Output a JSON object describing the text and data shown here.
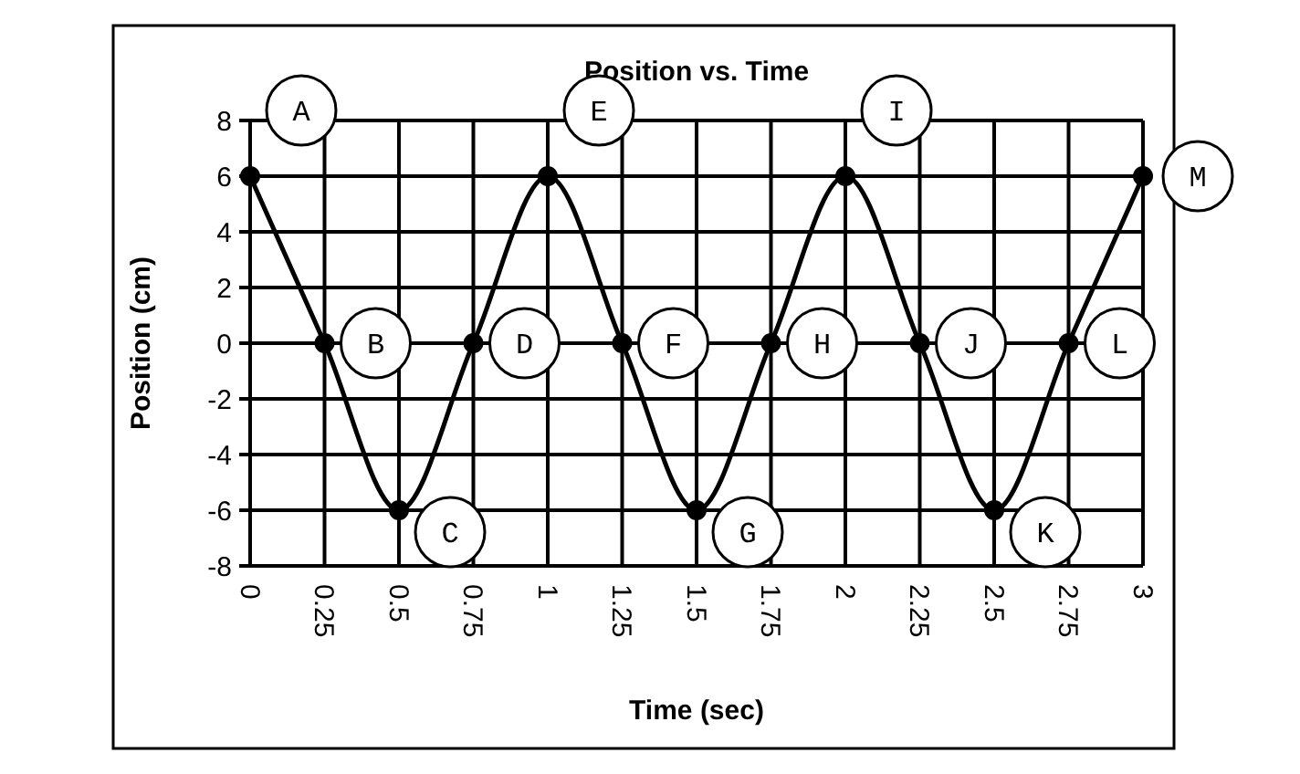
{
  "chart_data": {
    "type": "line",
    "title": "Position vs. Time",
    "xlabel": "Time (sec)",
    "ylabel": "Position (cm)",
    "x": [
      0,
      0.25,
      0.5,
      0.75,
      1,
      1.25,
      1.5,
      1.75,
      2,
      2.25,
      2.5,
      2.75,
      3
    ],
    "series": [
      {
        "color": "#000000",
        "values": [
          6,
          0,
          -6,
          0,
          6,
          0,
          -6,
          0,
          6,
          0,
          -6,
          0,
          6
        ]
      }
    ],
    "xlim": [
      0,
      3
    ],
    "xticks": [
      0,
      0.25,
      0.5,
      0.75,
      1,
      1.25,
      1.5,
      1.75,
      2,
      2.25,
      2.5,
      2.75,
      3
    ],
    "ylim": [
      -8,
      8
    ],
    "yticks": [
      -8,
      -6,
      -4,
      -2,
      0,
      2,
      4,
      6,
      8
    ],
    "grid": true,
    "marker": "circle",
    "line_style": "solid",
    "annotations": [
      {
        "text": "A",
        "x": 0,
        "y": 6
      },
      {
        "text": "B",
        "x": 0.25,
        "y": 0
      },
      {
        "text": "C",
        "x": 0.5,
        "y": -6
      },
      {
        "text": "D",
        "x": 0.75,
        "y": 0
      },
      {
        "text": "E",
        "x": 1,
        "y": 6
      },
      {
        "text": "F",
        "x": 1.25,
        "y": 0
      },
      {
        "text": "G",
        "x": 1.5,
        "y": -6
      },
      {
        "text": "H",
        "x": 1.75,
        "y": 0
      },
      {
        "text": "I",
        "x": 2,
        "y": 6
      },
      {
        "text": "J",
        "x": 2.25,
        "y": 0
      },
      {
        "text": "K",
        "x": 2.5,
        "y": -6
      },
      {
        "text": "L",
        "x": 2.75,
        "y": 0
      },
      {
        "text": "M",
        "x": 3,
        "y": 6
      }
    ]
  }
}
